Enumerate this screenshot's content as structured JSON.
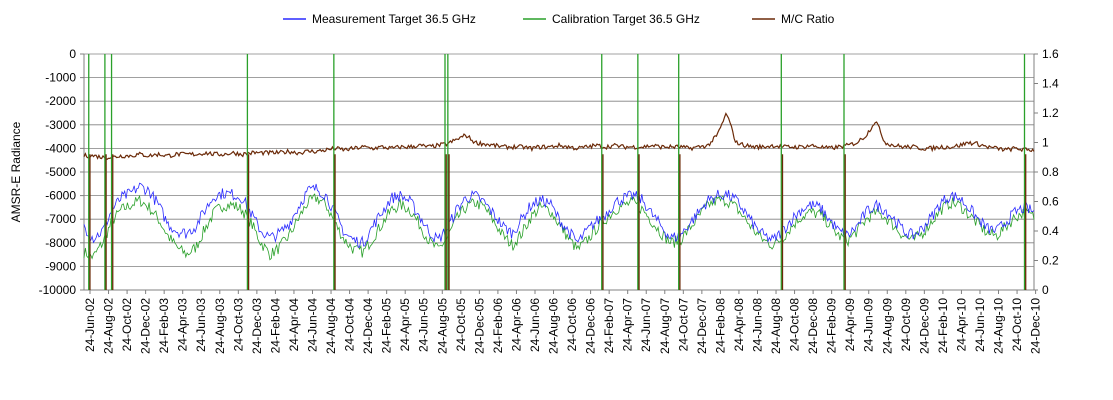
{
  "chart_data": {
    "type": "line",
    "title": "",
    "xlabel": "",
    "ylabel": "AMSR-E Radiance",
    "y2label": "",
    "ylim": [
      -10000,
      0
    ],
    "y2lim": [
      0,
      1.6
    ],
    "yticks": [
      "0",
      "-1000",
      "-2000",
      "-3000",
      "-4000",
      "-5000",
      "-6000",
      "-7000",
      "-8000",
      "-9000",
      "-10000"
    ],
    "y2ticks": [
      "1.6",
      "1.4",
      "1.2",
      "1",
      "0.8",
      "0.6",
      "0.4",
      "0.2",
      "0"
    ],
    "grid": true,
    "legend_position": "top",
    "x_tick_labels": [
      "24-Jun-02",
      "24-Aug-02",
      "24-Oct-02",
      "24-Dec-02",
      "24-Feb-03",
      "24-Apr-03",
      "24-Jun-03",
      "24-Aug-03",
      "24-Oct-03",
      "24-Dec-03",
      "24-Feb-04",
      "24-Apr-04",
      "24-Jun-04",
      "24-Aug-04",
      "24-Oct-04",
      "24-Dec-04",
      "24-Feb-05",
      "24-Apr-05",
      "24-Jun-05",
      "24-Aug-05",
      "24-Oct-05",
      "24-Dec-05",
      "24-Feb-06",
      "24-Apr-06",
      "24-Jun-06",
      "24-Aug-06",
      "24-Oct-06",
      "24-Dec-06",
      "24-Feb-07",
      "24-Apr-07",
      "24-Jun-07",
      "24-Aug-07",
      "24-Oct-07",
      "24-Dec-07",
      "24-Feb-08",
      "24-Apr-08",
      "24-Jun-08",
      "24-Aug-08",
      "24-Oct-08",
      "24-Dec-08",
      "24-Feb-09",
      "24-Apr-09",
      "24-Jun-09",
      "24-Aug-09",
      "24-Oct-09",
      "24-Dec-09",
      "24-Feb-10",
      "24-Apr-10",
      "24-Jun-10",
      "24-Aug-10",
      "24-Oct-10",
      "24-Dec-10"
    ],
    "series": [
      {
        "name": "Measurement Target 36.5 GHz",
        "color": "#2a2aff",
        "axis": "left",
        "values": [
          -7300,
          -7800,
          -7500,
          -6600,
          -6100,
          -5900,
          -5600,
          -5800,
          -6400,
          -7200,
          -7500,
          -7600,
          -7300,
          -6600,
          -6000,
          -5900,
          -5950,
          -6100,
          -6800,
          -7500,
          -7800,
          -7600,
          -7200,
          -6500,
          -5800,
          -5700,
          -6000,
          -6800,
          -7600,
          -7900,
          -8000,
          -7300,
          -6700,
          -6100,
          -6000,
          -6250,
          -6850,
          -7500,
          -7900,
          -7400,
          -6600,
          -6100,
          -6000,
          -6300,
          -6800,
          -7300,
          -7600,
          -7000,
          -6400,
          -6200,
          -6300,
          -7000,
          -7500,
          -8000,
          -7500,
          -7100,
          -6800,
          -6300,
          -6100,
          -6000,
          -6200,
          -6800,
          -7300,
          -7800,
          -7700,
          -7200,
          -6700,
          -6200,
          -6000,
          -5950,
          -6200,
          -6700,
          -7300,
          -7700,
          -7900,
          -7500,
          -7000,
          -6600,
          -6400,
          -6500,
          -7000,
          -7500,
          -7700,
          -7300,
          -6700,
          -6400,
          -6600,
          -7000,
          -7500,
          -7700,
          -7400,
          -6900,
          -6300,
          -6000,
          -6100,
          -6500,
          -7000,
          -7400,
          -7500,
          -7100,
          -6700,
          -6500,
          -6700
        ]
      },
      {
        "name": "Calibration Target 36.5 GHz",
        "color": "#2aa02a",
        "axis": "left",
        "values": [
          -8400,
          -8600,
          -8000,
          -7100,
          -6600,
          -6400,
          -6200,
          -6500,
          -7000,
          -7700,
          -8200,
          -8500,
          -8200,
          -7400,
          -6700,
          -6400,
          -6400,
          -6600,
          -7200,
          -8000,
          -8500,
          -8200,
          -7700,
          -7000,
          -6300,
          -6100,
          -6400,
          -7200,
          -7900,
          -8300,
          -8400,
          -7800,
          -7200,
          -6600,
          -6400,
          -6600,
          -7200,
          -7900,
          -8300,
          -7800,
          -7000,
          -6500,
          -6300,
          -6500,
          -7100,
          -7700,
          -8100,
          -7600,
          -6900,
          -6500,
          -6600,
          -7200,
          -7800,
          -8300,
          -7900,
          -7400,
          -7000,
          -6600,
          -6400,
          -6300,
          -6600,
          -7100,
          -7600,
          -8000,
          -7900,
          -7400,
          -6900,
          -6400,
          -6200,
          -6200,
          -6500,
          -7000,
          -7500,
          -7900,
          -8100,
          -7800,
          -7300,
          -6900,
          -6700,
          -6800,
          -7200,
          -7700,
          -7900,
          -7500,
          -7000,
          -6700,
          -6900,
          -7300,
          -7700,
          -7900,
          -7600,
          -7100,
          -6600,
          -6300,
          -6400,
          -6800,
          -7200,
          -7600,
          -7700,
          -7300,
          -6900,
          -6700,
          -6900
        ]
      },
      {
        "name": "M/C Ratio",
        "color": "#6b2a08",
        "axis": "right",
        "values": [
          0.91,
          0.91,
          0.9,
          0.9,
          0.91,
          0.91,
          0.92,
          0.91,
          0.92,
          0.91,
          0.92,
          0.92,
          0.92,
          0.93,
          0.92,
          0.92,
          0.93,
          0.92,
          0.93,
          0.93,
          0.93,
          0.93,
          0.94,
          0.93,
          0.94,
          0.94,
          0.95,
          0.96,
          0.95,
          0.96,
          0.97,
          0.96,
          0.97,
          0.96,
          0.97,
          0.97,
          0.98,
          0.97,
          0.98,
          0.99,
          1.02,
          1.05,
          1.0,
          0.99,
          0.98,
          0.97,
          0.97,
          0.97,
          0.96,
          0.97,
          0.97,
          0.98,
          0.97,
          0.96,
          0.97,
          0.98,
          0.97,
          0.98,
          0.97,
          0.97,
          0.97,
          0.98,
          0.97,
          0.97,
          0.97,
          0.96,
          0.97,
          0.98,
          1.05,
          1.2,
          1.0,
          0.98,
          0.97,
          0.97,
          0.98,
          0.97,
          0.97,
          0.97,
          0.98,
          0.97,
          0.96,
          0.97,
          0.98,
          1.0,
          1.05,
          1.15,
          1.0,
          0.98,
          0.97,
          0.97,
          0.96,
          0.96,
          0.97,
          0.97,
          0.98,
          1.0,
          0.99,
          0.97,
          0.96,
          0.95,
          0.96,
          0.95,
          0.95
        ]
      }
    ],
    "spikes": {
      "color": "#2aa02a",
      "ratio_drop_color": "#6b2a08",
      "x_positions": [
        0.005,
        0.022,
        0.029,
        0.172,
        0.263,
        0.38,
        0.383,
        0.545,
        0.583,
        0.626,
        0.734,
        0.8,
        0.99
      ]
    },
    "x_fraction_note_removed": true
  }
}
